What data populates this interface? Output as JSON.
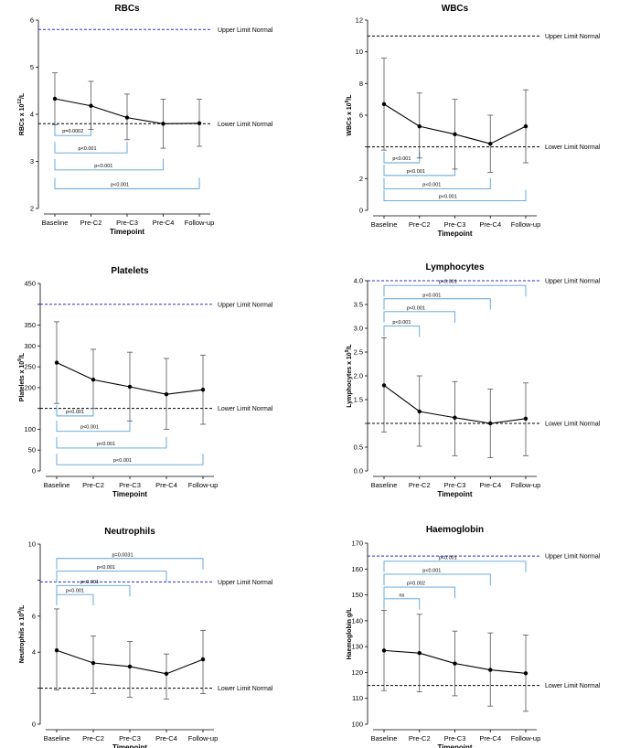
{
  "chart_data": [
    {
      "type": "line",
      "title": "RBCs",
      "ylabel_main": "RBCs x 10",
      "ylabel_sup": "12",
      "ylabel_tail": "/L",
      "xlabel": "Timepoint",
      "categories": [
        "Baseline",
        "Pre-C2",
        "Pre-C3",
        "Pre-C4",
        "Follow-up"
      ],
      "ylim": [
        2,
        6
      ],
      "yticks": [
        2,
        3,
        4,
        5,
        6
      ],
      "means": [
        4.33,
        4.18,
        3.93,
        3.8,
        3.81
      ],
      "error_low": [
        3.78,
        3.68,
        3.46,
        3.28,
        3.32
      ],
      "error_high": [
        4.88,
        4.7,
        4.43,
        4.32,
        4.32
      ],
      "reference_lines": [
        {
          "label": "Upper Limit Normal",
          "value": 5.8,
          "color": "#2a2ad1"
        },
        {
          "label": "Lower Limit Normal",
          "value": 3.8,
          "color": "#000000"
        }
      ],
      "brackets": [
        {
          "from": "Baseline",
          "to": "Pre-C2",
          "label": "p=0.0002",
          "level": 3.55
        },
        {
          "from": "Baseline",
          "to": "Pre-C3",
          "label": "p<0.001",
          "level": 3.18
        },
        {
          "from": "Baseline",
          "to": "Pre-C4",
          "label": "p<0.001",
          "level": 2.82
        },
        {
          "from": "Baseline",
          "to": "Follow-up",
          "label": "p<0.001",
          "level": 2.42
        }
      ],
      "bracket_side": "below"
    },
    {
      "type": "line",
      "title": "WBCs",
      "ylabel_main": "WBCs x 10",
      "ylabel_sup": "9",
      "ylabel_tail": "/L",
      "xlabel": "Timepoint",
      "categories": [
        "Baseline",
        "Pre-C2",
        "Pre-C3",
        "Pre-C4",
        "Follow-up"
      ],
      "ylim": [
        0,
        12
      ],
      "yticks": [
        0,
        2,
        4,
        6,
        8,
        10,
        12
      ],
      "ytick_labels": [
        "0",
        "2",
        "",
        "6",
        "8",
        "10",
        "12"
      ],
      "means": [
        6.7,
        5.3,
        4.8,
        4.2,
        5.3
      ],
      "error_low": [
        3.8,
        3.3,
        2.6,
        2.4,
        3.0
      ],
      "error_high": [
        9.6,
        7.4,
        7.0,
        6.0,
        7.6
      ],
      "reference_lines": [
        {
          "label": "Upper Limit Normal",
          "value": 11,
          "color": "#000000"
        },
        {
          "label": "Lower Limit Normal",
          "value": 4,
          "color": "#000000"
        }
      ],
      "brackets": [
        {
          "from": "Baseline",
          "to": "Pre-C2",
          "label": "p<0.001",
          "level": 3.0
        },
        {
          "from": "Baseline",
          "to": "Pre-C3",
          "label": "p<0.001",
          "level": 2.2
        },
        {
          "from": "Baseline",
          "to": "Pre-C4",
          "label": "p<0.001",
          "level": 1.35
        },
        {
          "from": "Baseline",
          "to": "Follow-up",
          "label": "p<0.001",
          "level": 0.6
        }
      ],
      "bracket_side": "below"
    },
    {
      "type": "line",
      "title": "Platelets",
      "ylabel_main": "Platelets x 10",
      "ylabel_sup": "9",
      "ylabel_tail": "/L",
      "xlabel": "Timepoint",
      "categories": [
        "Baseline",
        "Pre-C2",
        "Pre-C3",
        "Pre-C4",
        "Follow-up"
      ],
      "ylim": [
        0,
        450
      ],
      "yticks": [
        0,
        50,
        100,
        150,
        200,
        250,
        300,
        350,
        400,
        450
      ],
      "ytick_labels": [
        "0",
        "50",
        "100",
        "",
        "200",
        "250",
        "300",
        "350",
        "",
        "450"
      ],
      "means": [
        260,
        219,
        202,
        184,
        195
      ],
      "error_low": [
        162,
        150,
        120,
        100,
        112
      ],
      "error_high": [
        358,
        292,
        285,
        270,
        278
      ],
      "reference_lines": [
        {
          "label": "Upper Limit Normal",
          "value": 400,
          "color": "#2a2ad1"
        },
        {
          "label": "Lower Limit Normal",
          "value": 150,
          "color": "#000000"
        }
      ],
      "brackets": [
        {
          "from": "Baseline",
          "to": "Pre-C2",
          "label": "p<0.001",
          "level": 132
        },
        {
          "from": "Baseline",
          "to": "Pre-C3",
          "label": "p<0.001",
          "level": 95
        },
        {
          "from": "Baseline",
          "to": "Pre-C4",
          "label": "p<0.001",
          "level": 55
        },
        {
          "from": "Baseline",
          "to": "Follow-up",
          "label": "p<0.001",
          "level": 15
        }
      ],
      "bracket_side": "below"
    },
    {
      "type": "line",
      "title": "Lymphocytes",
      "ylabel_main": "Lymphocytes x 10",
      "ylabel_sup": "9",
      "ylabel_tail": "/L",
      "xlabel": "Timepoint",
      "categories": [
        "Baseline",
        "Pre-C2",
        "Pre-C3",
        "Pre-C4",
        "Follow-up"
      ],
      "ylim": [
        0,
        4
      ],
      "yticks": [
        0,
        0.5,
        1.0,
        1.5,
        2.0,
        2.5,
        3.0,
        3.5,
        4.0
      ],
      "ytick_labels": [
        "0.0",
        "0.5",
        "",
        "1.5",
        "2.0",
        "2.5",
        "3.0",
        "3.5",
        "4.0"
      ],
      "means": [
        1.8,
        1.25,
        1.12,
        1.0,
        1.1
      ],
      "error_low": [
        0.82,
        0.52,
        0.32,
        0.28,
        0.32
      ],
      "error_high": [
        2.8,
        2.0,
        1.88,
        1.72,
        1.85
      ],
      "reference_lines": [
        {
          "label": "Upper Limit Normal",
          "value": 4.0,
          "color": "#2a2ad1"
        },
        {
          "label": "Lower Limit Normal",
          "value": 1.0,
          "color": "#000000"
        }
      ],
      "brackets": [
        {
          "from": "Baseline",
          "to": "Pre-C2",
          "label": "p<0.001",
          "level": 3.05
        },
        {
          "from": "Baseline",
          "to": "Pre-C3",
          "label": "p<0.001",
          "level": 3.35
        },
        {
          "from": "Baseline",
          "to": "Pre-C4",
          "label": "p<0.001",
          "level": 3.62
        },
        {
          "from": "Baseline",
          "to": "Follow-up",
          "label": "p<0.001",
          "level": 3.9
        }
      ],
      "bracket_side": "above"
    },
    {
      "type": "line",
      "title": "Neutrophils",
      "ylabel_main": "Neutrophils x 10",
      "ylabel_sup": "9",
      "ylabel_tail": "/L",
      "xlabel": "Timepoint",
      "categories": [
        "Baseline",
        "Pre-C2",
        "Pre-C3",
        "Pre-C4",
        "Follow-up"
      ],
      "ylim": [
        0,
        10
      ],
      "yticks": [
        0,
        2,
        4,
        6,
        8,
        10
      ],
      "ytick_labels": [
        "0",
        "",
        "4",
        "6",
        "",
        "10"
      ],
      "means": [
        4.1,
        3.4,
        3.2,
        2.8,
        3.6
      ],
      "error_low": [
        1.9,
        1.7,
        1.5,
        1.4,
        1.7
      ],
      "error_high": [
        6.4,
        4.9,
        4.6,
        3.9,
        5.2
      ],
      "reference_lines": [
        {
          "label": "Upper Limit Normal",
          "value": 7.9,
          "color": "#2a2ad1"
        },
        {
          "label": "Lower Limit Normal",
          "value": 2.0,
          "color": "#000000"
        }
      ],
      "brackets": [
        {
          "from": "Baseline",
          "to": "Pre-C2",
          "label": "p<0.001",
          "level": 7.2
        },
        {
          "from": "Baseline",
          "to": "Pre-C3",
          "label": "p<0.001",
          "level": 7.7
        },
        {
          "from": "Baseline",
          "to": "Pre-C4",
          "label": "p<0.001",
          "level": 8.5
        },
        {
          "from": "Baseline",
          "to": "Follow-up",
          "label": "p=0.0031",
          "level": 9.2
        }
      ],
      "bracket_side": "above"
    },
    {
      "type": "line",
      "title": "Haemoglobin",
      "ylabel_main": "Haemoglobin g/L",
      "ylabel_sup": "",
      "ylabel_tail": "",
      "xlabel": "Timepoint",
      "categories": [
        "Baseline",
        "Pre-C2",
        "Pre-C3",
        "Pre-C4",
        "Follow-up"
      ],
      "ylim": [
        100,
        170
      ],
      "yticks": [
        100,
        110,
        120,
        130,
        140,
        150,
        160,
        170
      ],
      "means": [
        128.5,
        127.5,
        123.5,
        121.0,
        119.7
      ],
      "error_low": [
        113,
        112.5,
        111,
        107,
        105
      ],
      "error_high": [
        144,
        142.5,
        136,
        135.3,
        134.5
      ],
      "reference_lines": [
        {
          "label": "Upper Limit Normal",
          "value": 165,
          "color": "#2a2ad1"
        },
        {
          "label": "Lower Limit Normal",
          "value": 115,
          "color": "#000000"
        }
      ],
      "brackets": [
        {
          "from": "Baseline",
          "to": "Pre-C2",
          "label": "ns",
          "level": 148.5
        },
        {
          "from": "Baseline",
          "to": "Pre-C3",
          "label": "p=0.002",
          "level": 153
        },
        {
          "from": "Baseline",
          "to": "Pre-C4",
          "label": "p<0.001",
          "level": 158
        },
        {
          "from": "Baseline",
          "to": "Follow-up",
          "label": "p<0.001",
          "level": 163
        }
      ],
      "bracket_side": "above"
    }
  ],
  "style": {
    "bracket_color": "#5aa0d8",
    "axis_color": "#000000",
    "line_color": "#000000",
    "error_color": "#555555"
  }
}
